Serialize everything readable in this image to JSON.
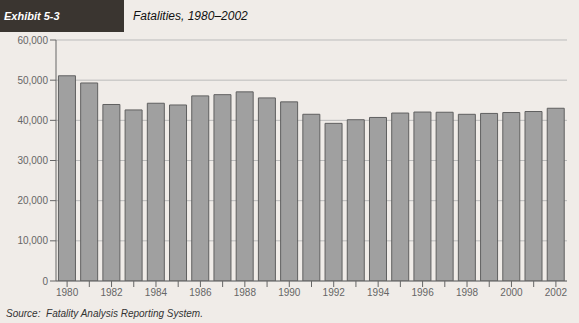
{
  "chart_data": {
    "type": "bar",
    "title": "Fatalities, 1980–2002",
    "annotations": [
      "Exhibit 5-3",
      "Source:  Fatality Analysis Reporting System."
    ],
    "categories": [
      "1980",
      null,
      "1982",
      null,
      "1984",
      null,
      "1986",
      null,
      "1988",
      null,
      "1990",
      null,
      "1992",
      null,
      "1994",
      null,
      "1996",
      null,
      "1998",
      null,
      "2000",
      null,
      "2002"
    ],
    "values": [
      51091,
      49301,
      43945,
      42589,
      44257,
      43825,
      46087,
      46390,
      47087,
      45582,
      44599,
      41508,
      39250,
      40150,
      40716,
      41817,
      42065,
      42013,
      41501,
      41717,
      41945,
      42196,
      43005
    ],
    "color": "#a0a0a0",
    "ylim": [
      0,
      60000
    ],
    "yticks": [
      0,
      {
        "value": 10000,
        "label": "10,000"
      },
      {
        "value": 20000,
        "label": "20,000"
      },
      {
        "value": 30000,
        "label": "30,000"
      },
      {
        "value": 40000,
        "label": "40,000"
      },
      {
        "value": 50000,
        "label": "50,000"
      },
      {
        "value": 60000,
        "label": "60,000"
      }
    ],
    "grid": true
  }
}
